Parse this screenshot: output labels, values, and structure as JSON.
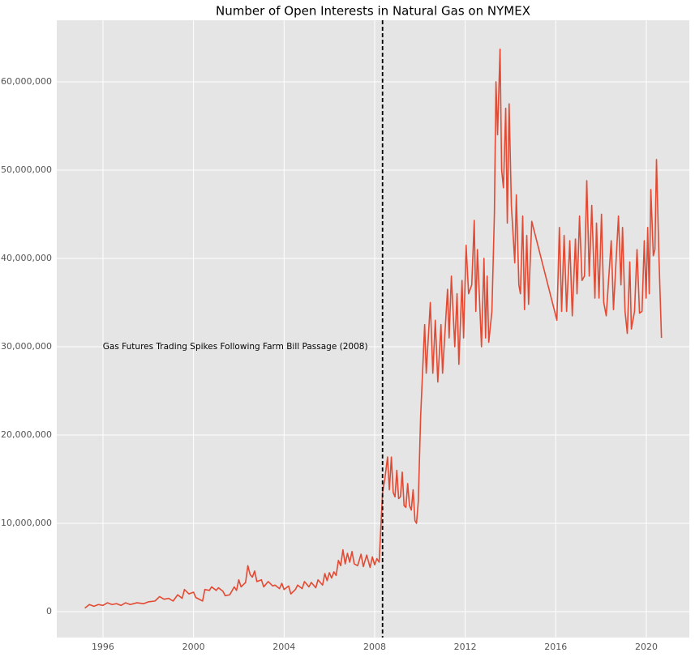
{
  "chart_data": {
    "type": "line",
    "title": "Number of Open Interests in Natural Gas on NYMEX",
    "x": [
      1995.2,
      1995.4,
      1995.6,
      1995.8,
      1996.0,
      1996.2,
      1996.4,
      1996.6,
      1996.8,
      1997.0,
      1997.2,
      1997.5,
      1997.8,
      1998.0,
      1998.3,
      1998.5,
      1998.7,
      1998.9,
      1999.1,
      1999.3,
      1999.5,
      1999.6,
      1999.8,
      2000.0,
      2000.1,
      2000.4,
      2000.5,
      2000.7,
      2000.8,
      2001.0,
      2001.1,
      2001.3,
      2001.4,
      2001.6,
      2001.8,
      2001.9,
      2002.0,
      2002.1,
      2002.3,
      2002.4,
      2002.5,
      2002.6,
      2002.7,
      2002.8,
      2003.0,
      2003.1,
      2003.3,
      2003.5,
      2003.6,
      2003.8,
      2003.9,
      2004.0,
      2004.2,
      2004.3,
      2004.5,
      2004.6,
      2004.8,
      2004.9,
      2005.1,
      2005.2,
      2005.4,
      2005.5,
      2005.7,
      2005.8,
      2005.9,
      2006.0,
      2006.1,
      2006.2,
      2006.3,
      2006.4,
      2006.5,
      2006.6,
      2006.7,
      2006.8,
      2006.9,
      2007.0,
      2007.1,
      2007.25,
      2007.4,
      2007.5,
      2007.65,
      2007.8,
      2007.9,
      2008.0,
      2008.1,
      2008.2,
      2008.35,
      2008.45,
      2008.57,
      2008.65,
      2008.74,
      2008.82,
      2008.9,
      2008.98,
      2009.06,
      2009.14,
      2009.22,
      2009.3,
      2009.38,
      2009.46,
      2009.54,
      2009.62,
      2009.7,
      2009.78,
      2009.85,
      2009.93,
      2010.03,
      2010.21,
      2010.28,
      2010.46,
      2010.57,
      2010.68,
      2010.79,
      2010.93,
      2011.0,
      2011.22,
      2011.29,
      2011.39,
      2011.54,
      2011.64,
      2011.72,
      2011.86,
      2011.93,
      2012.04,
      2012.15,
      2012.29,
      2012.4,
      2012.47,
      2012.54,
      2012.72,
      2012.83,
      2012.9,
      2012.97,
      2013.04,
      2013.18,
      2013.29,
      2013.36,
      2013.43,
      2013.54,
      2013.61,
      2013.69,
      2013.79,
      2013.86,
      2013.94,
      2014.04,
      2014.19,
      2014.26,
      2014.37,
      2014.44,
      2014.54,
      2014.62,
      2014.72,
      2014.8,
      2014.94,
      2016.05,
      2016.16,
      2016.26,
      2016.37,
      2016.48,
      2016.62,
      2016.73,
      2016.87,
      2016.94,
      2017.05,
      2017.16,
      2017.27,
      2017.37,
      2017.48,
      2017.59,
      2017.73,
      2017.8,
      2017.91,
      2018.02,
      2018.12,
      2018.23,
      2018.45,
      2018.55,
      2018.77,
      2018.88,
      2018.95,
      2019.06,
      2019.16,
      2019.27,
      2019.34,
      2019.48,
      2019.59,
      2019.7,
      2019.81,
      2019.91,
      2019.99,
      2020.06,
      2020.13,
      2020.2,
      2020.31,
      2020.38,
      2020.45,
      2020.56,
      2020.67
    ],
    "series": [
      {
        "name": "Open Interest",
        "color": "#e24a33",
        "values": [
          400000,
          800000,
          600000,
          800000,
          700000,
          1000000,
          800000,
          900000,
          700000,
          1000000,
          800000,
          1000000,
          900000,
          1100000,
          1200000,
          1700000,
          1400000,
          1500000,
          1200000,
          1900000,
          1500000,
          2500000,
          2000000,
          2200000,
          1600000,
          1200000,
          2500000,
          2400000,
          2800000,
          2400000,
          2700000,
          2300000,
          1800000,
          1900000,
          2800000,
          2400000,
          3600000,
          2800000,
          3300000,
          5200000,
          4200000,
          3900000,
          4600000,
          3400000,
          3600000,
          2800000,
          3400000,
          2900000,
          3000000,
          2600000,
          3200000,
          2500000,
          2900000,
          2000000,
          2500000,
          3000000,
          2600000,
          3400000,
          2800000,
          3300000,
          2700000,
          3600000,
          3000000,
          4300000,
          3500000,
          4400000,
          3800000,
          4500000,
          4100000,
          5800000,
          5200000,
          7000000,
          5400000,
          6600000,
          5600000,
          6800000,
          5400000,
          5200000,
          6500000,
          5100000,
          6400000,
          5000000,
          6200000,
          5300000,
          6000000,
          5600000,
          13500000,
          15000000,
          17500000,
          13800000,
          17500000,
          13500000,
          13000000,
          16000000,
          12800000,
          13000000,
          15800000,
          12000000,
          11800000,
          14500000,
          12000000,
          11500000,
          13800000,
          10300000,
          10000000,
          12500000,
          22000000,
          32500000,
          27000000,
          35000000,
          27000000,
          33000000,
          26000000,
          32500000,
          27000000,
          36500000,
          31000000,
          38000000,
          30000000,
          36000000,
          28000000,
          37500000,
          31000000,
          41500000,
          36000000,
          37000000,
          44300000,
          34000000,
          41000000,
          30000000,
          40000000,
          31000000,
          38000000,
          30500000,
          34000000,
          45000000,
          60000000,
          54000000,
          63700000,
          50000000,
          48000000,
          57000000,
          44000000,
          57500000,
          46000000,
          39500000,
          47200000,
          37000000,
          36000000,
          44800000,
          34200000,
          42600000,
          34800000,
          44200000,
          33000000,
          43500000,
          34000000,
          42600000,
          34000000,
          42000000,
          33500000,
          42200000,
          36000000,
          44800000,
          37500000,
          38000000,
          48800000,
          38000000,
          46000000,
          35500000,
          44000000,
          35500000,
          45000000,
          35000000,
          33500000,
          42000000,
          34200000,
          44800000,
          37000000,
          43500000,
          34000000,
          31500000,
          39600000,
          32000000,
          34000000,
          41000000,
          33800000,
          34000000,
          42000000,
          35500000,
          43500000,
          36000000,
          47800000,
          40300000,
          41000000,
          51200000,
          40000000,
          31000000
        ]
      }
    ],
    "xlim": [
      1993.96,
      2021.9
    ],
    "xticks": [
      1996,
      2000,
      2004,
      2008,
      2012,
      2016,
      2020
    ],
    "ylim": [
      -2940000,
      66970000
    ],
    "yticks": [
      0,
      {
        "value": 10000000,
        "label": "10,000,000"
      },
      {
        "value": 20000000,
        "label": "20,000,000"
      },
      {
        "value": 30000000,
        "label": "30,000,000"
      },
      {
        "value": 40000000,
        "label": "40,000,000"
      },
      {
        "value": 50000000,
        "label": "50,000,000"
      },
      {
        "value": 60000000,
        "label": "60,000,000"
      }
    ],
    "grid": true,
    "vline": {
      "x": 2008.35,
      "color": "#000000"
    },
    "annotation": {
      "text": "Gas Futures Trading Spikes Following Farm Bill Passage (2008)",
      "x": 2007.7,
      "y": 30000000
    }
  }
}
